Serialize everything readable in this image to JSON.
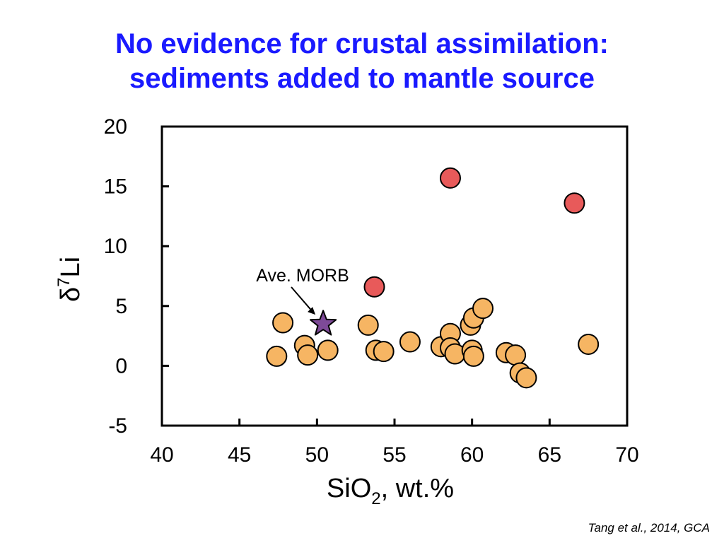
{
  "slide": {
    "title_line1": "No evidence for crustal assimilation:",
    "title_line2": "sediments added to mantle source",
    "citation": "Tang et al., 2014, GCA"
  },
  "chart_data": {
    "type": "scatter",
    "xlabel_main": "SiO",
    "xlabel_sub": "2",
    "xlabel_rest": ", wt.%",
    "ylabel_main": "δ",
    "ylabel_sup": "7",
    "ylabel_rest": "Li",
    "xlim": [
      40,
      70
    ],
    "ylim": [
      -5,
      20
    ],
    "xticks": [
      40,
      45,
      50,
      55,
      60,
      65,
      70
    ],
    "yticks": [
      -5,
      0,
      5,
      10,
      15,
      20
    ],
    "grid": false,
    "series": [
      {
        "color": "#f6b563",
        "marker": "circle",
        "points": [
          {
            "x": 47.4,
            "y": 0.8
          },
          {
            "x": 47.8,
            "y": 3.6
          },
          {
            "x": 49.2,
            "y": 1.7
          },
          {
            "x": 49.4,
            "y": 0.9
          },
          {
            "x": 50.7,
            "y": 1.3
          },
          {
            "x": 53.3,
            "y": 3.4
          },
          {
            "x": 53.8,
            "y": 1.3
          },
          {
            "x": 54.3,
            "y": 1.2
          },
          {
            "x": 56.0,
            "y": 2.0
          },
          {
            "x": 58.0,
            "y": 1.6
          },
          {
            "x": 58.6,
            "y": 2.7
          },
          {
            "x": 58.6,
            "y": 1.5
          },
          {
            "x": 58.9,
            "y": 1.0
          },
          {
            "x": 59.9,
            "y": 3.4
          },
          {
            "x": 60.0,
            "y": 1.3
          },
          {
            "x": 60.1,
            "y": 0.8
          },
          {
            "x": 60.1,
            "y": 4.0
          },
          {
            "x": 60.7,
            "y": 4.8
          },
          {
            "x": 62.2,
            "y": 1.1
          },
          {
            "x": 62.8,
            "y": 0.9
          },
          {
            "x": 63.1,
            "y": -0.6
          },
          {
            "x": 63.5,
            "y": -1.0
          },
          {
            "x": 67.5,
            "y": 1.8
          }
        ]
      },
      {
        "color": "#e85a5a",
        "marker": "circle",
        "points": [
          {
            "x": 53.7,
            "y": 6.6
          },
          {
            "x": 58.6,
            "y": 15.7
          },
          {
            "x": 66.6,
            "y": 13.6
          }
        ]
      },
      {
        "color": "#7e4a98",
        "marker": "star",
        "points": [
          {
            "x": 50.4,
            "y": 3.5
          }
        ]
      }
    ],
    "annotation": {
      "text": "Ave. MORB",
      "target_x": 50.4,
      "target_y": 3.5
    }
  }
}
